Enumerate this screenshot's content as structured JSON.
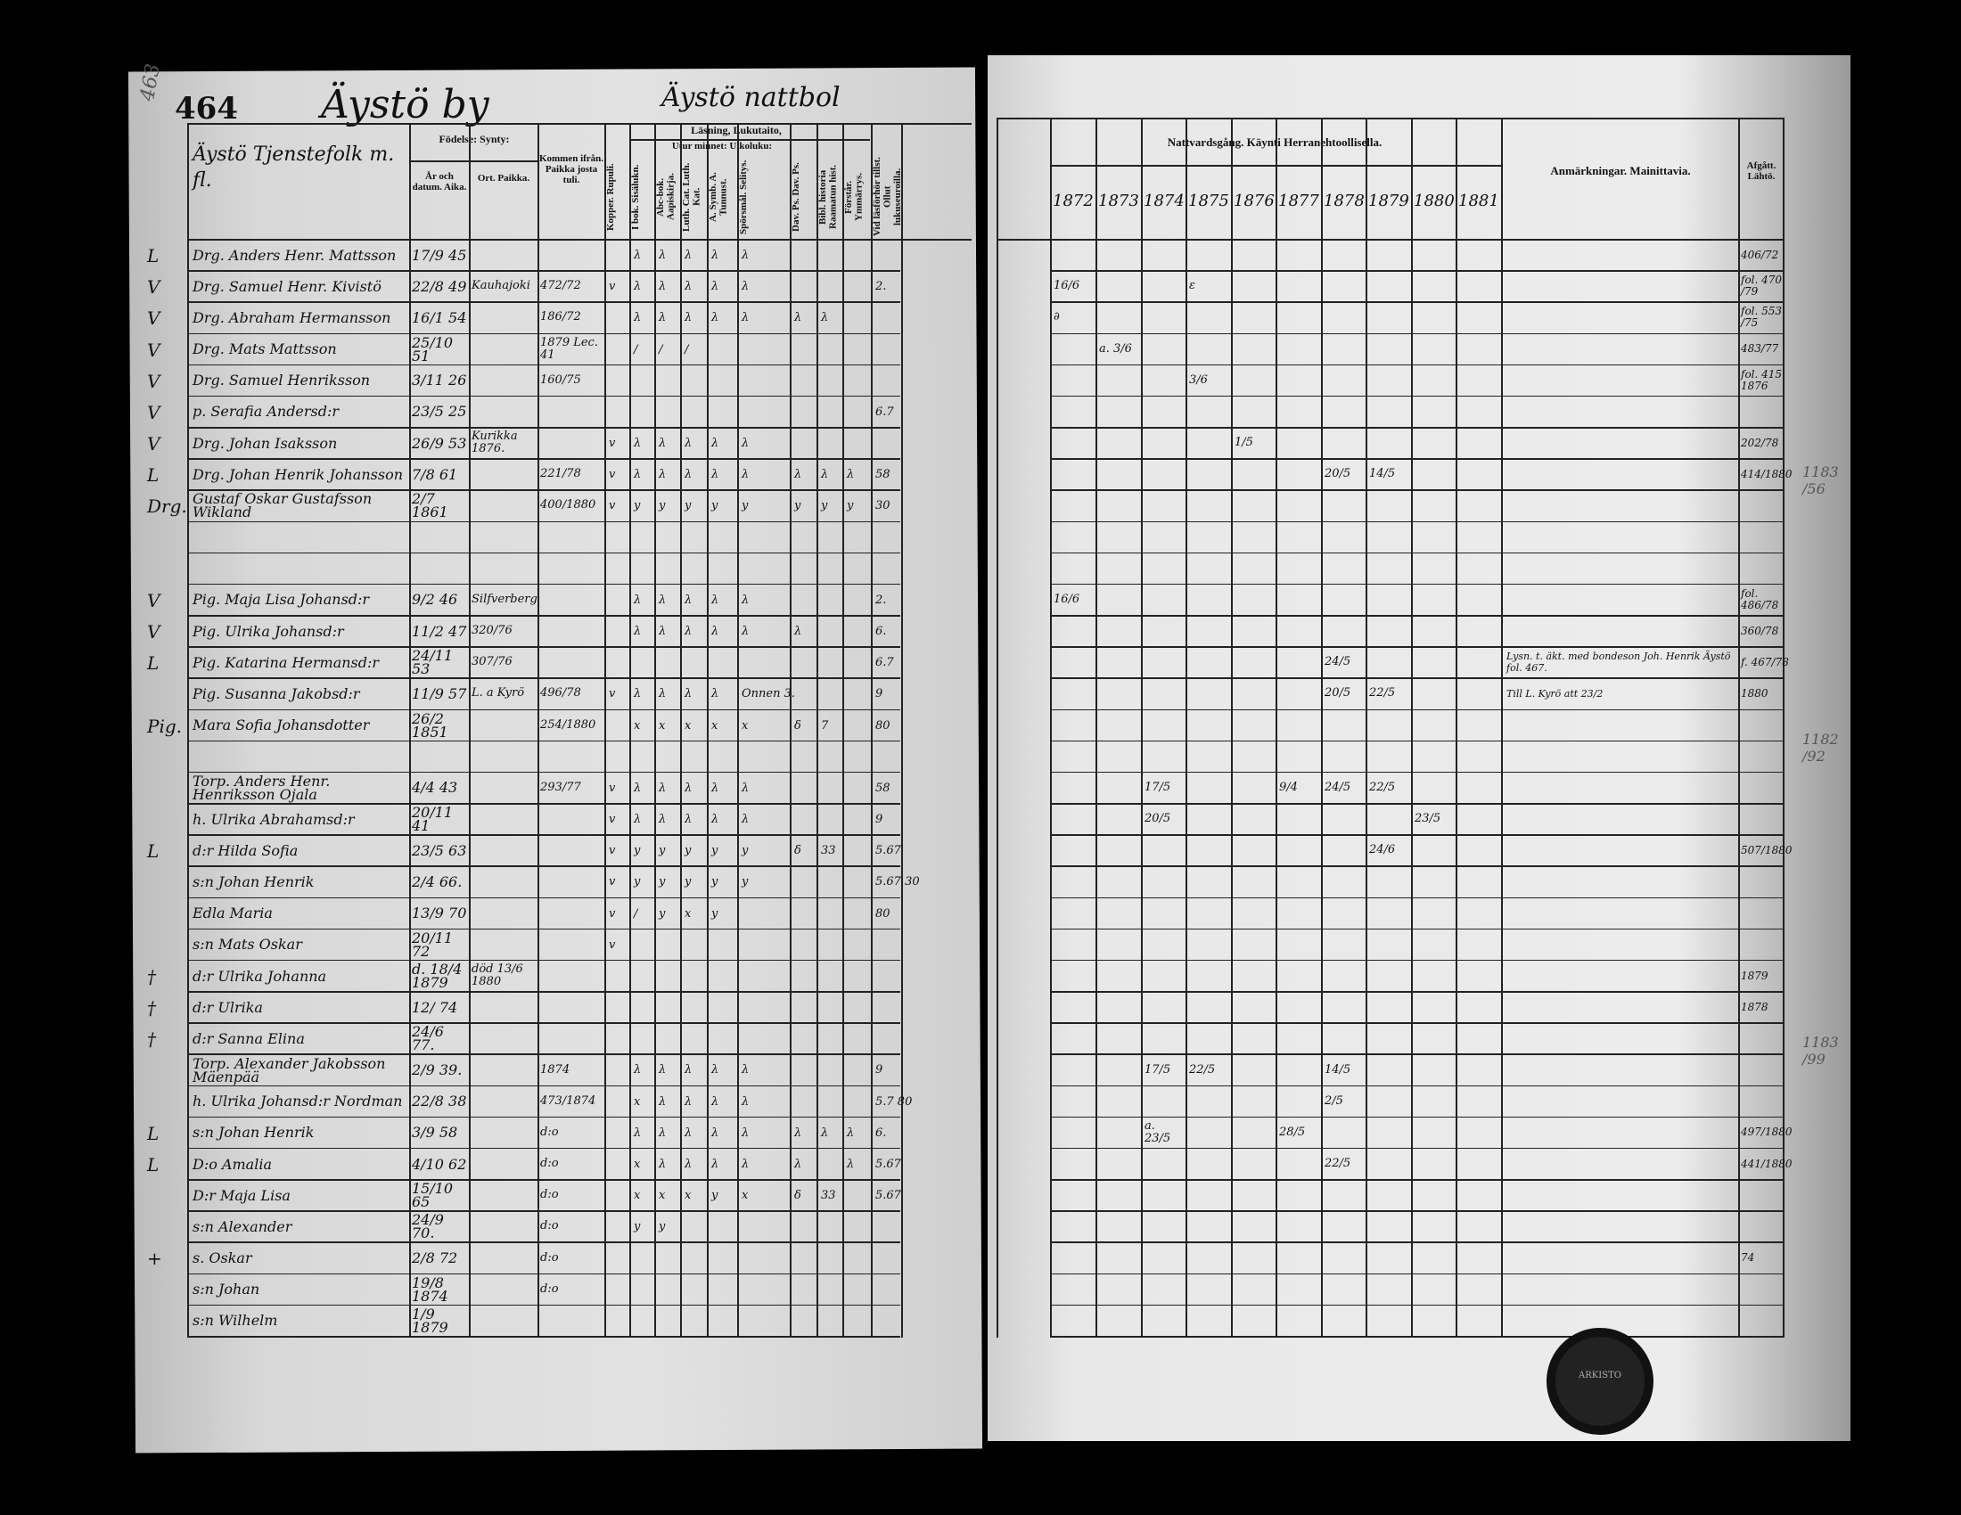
{
  "left_page": {
    "page_number": "464",
    "margin_number": "463",
    "village_title": "Äystö by",
    "group_title": "Äystö nattbol",
    "name_header": "Äystö Tjenstefolk m. fl.",
    "headers": {
      "birth_group": "Födelse: Synty:",
      "birth_date": "År och datum. Aika.",
      "birth_place": "Ort. Paikka.",
      "came_from": "Kommen ifrån. Paikka josta tuli.",
      "reading_group": "Läsning, Lukutaito,",
      "memory_group": "Utur minnet: Ulkoluku:",
      "narrow_columns": [
        "Kopper. Rupuli.",
        "I bok. Sisälukn.",
        "Abc-bok. Aapiskirja.",
        "Luth. Cat. Luth. Kat.",
        "A. Symb. A. Tunnust.",
        "Spörsmål. Selitys.",
        "Dav. Ps. Dav. Ps.",
        "Bibl. historia Raamatun hist.",
        "Förstår. Ymmärrys.",
        "Vid läsförhör tillst. Ollut lukuseuroilla."
      ]
    }
  },
  "right_page": {
    "communion_header": "Nattvardsgång. Käynti Herranehtoollisella.",
    "years": [
      "1872",
      "1873",
      "1874",
      "1875",
      "1876",
      "1877",
      "1878",
      "1879",
      "1880",
      "1881"
    ],
    "remarks_header": "Anmärkningar. Mainittavia.",
    "departed_header": "Afgått. Lähtö.",
    "margin_notes": [
      "1183 /56",
      "1182 /92",
      "1183 /99"
    ]
  },
  "stamp_text": "ARKISTO",
  "rows": [
    {
      "margin": "L",
      "name": "Drg. Anders Henr. Mattsson",
      "birth": "17/9 45",
      "place": "",
      "from": "",
      "marks": [
        "",
        "λ",
        "λ",
        "λ",
        "λ",
        "λ",
        "",
        "",
        "",
        ""
      ],
      "years": {},
      "note": "",
      "departed": "406/72"
    },
    {
      "margin": "V",
      "name": "Drg. Samuel Henr. Kivistö",
      "birth": "22/8 49",
      "place": "Kauhajoki",
      "from": "472/72",
      "marks": [
        "v",
        "λ",
        "λ",
        "λ",
        "λ",
        "λ",
        "",
        "",
        "",
        "2."
      ],
      "years": {
        "1872": "16/6",
        "1875": "ε"
      },
      "note": "",
      "departed": "fol. 470 /79"
    },
    {
      "margin": "V",
      "name": "Drg. Abraham Hermansson",
      "birth": "16/1 54",
      "place": "",
      "from": "186/72",
      "marks": [
        "",
        "λ",
        "λ",
        "λ",
        "λ",
        "λ",
        "λ",
        "λ",
        "",
        ""
      ],
      "years": {
        "1872": "∂"
      },
      "note": "",
      "departed": "fol. 553 /75"
    },
    {
      "margin": "V",
      "name": "Drg. Mats Mattsson",
      "birth": "25/10 51",
      "place": "",
      "from": "1879 Lec. 41",
      "marks": [
        "",
        "/",
        "/",
        "/",
        "",
        "",
        "",
        "",
        "",
        ""
      ],
      "years": {
        "1873": "a. 3/6"
      },
      "note": "",
      "departed": "483/77"
    },
    {
      "margin": "V",
      "name": "Drg. Samuel Henriksson",
      "birth": "3/11 26",
      "place": "",
      "from": "160/75",
      "marks": [
        "",
        "",
        "",
        "",
        "",
        "",
        "",
        "",
        "",
        ""
      ],
      "years": {
        "1875": "3/6"
      },
      "note": "",
      "departed": "fol. 415 1876"
    },
    {
      "margin": "V",
      "name": "p. Serafia Andersd:r",
      "birth": "23/5 25",
      "place": "",
      "from": "",
      "marks": [
        "",
        "",
        "",
        "",
        "",
        "",
        "",
        "",
        "",
        "6.7"
      ],
      "years": {},
      "note": "",
      "departed": ""
    },
    {
      "margin": "V",
      "name": "Drg. Johan Isaksson",
      "birth": "26/9 53",
      "place": "Kurikka 1876.",
      "from": "",
      "marks": [
        "v",
        "λ",
        "λ",
        "λ",
        "λ",
        "λ",
        "",
        "",
        "",
        ""
      ],
      "years": {
        "1876": "1/5"
      },
      "note": "",
      "departed": "202/78"
    },
    {
      "margin": "L",
      "name": "Drg. Johan Henrik Johansson",
      "birth": "7/8 61",
      "place": "",
      "from": "221/78",
      "marks": [
        "v",
        "λ",
        "λ",
        "λ",
        "λ",
        "λ",
        "λ",
        "λ",
        "λ",
        "58"
      ],
      "years": {
        "1878": "20/5",
        "1879": "14/5"
      },
      "note": "",
      "departed": "414/1880"
    },
    {
      "margin": "Drg.",
      "name": "Gustaf Oskar Gustafsson Wikland",
      "birth": "2/7 1861",
      "place": "",
      "from": "400/1880",
      "marks": [
        "v",
        "y",
        "y",
        "y",
        "y",
        "y",
        "y",
        "y",
        "y",
        "30"
      ],
      "years": {},
      "note": "",
      "departed": ""
    },
    {
      "margin": "",
      "name": "",
      "birth": "",
      "place": "",
      "from": "",
      "marks": [
        "",
        "",
        "",
        "",
        "",
        "",
        "",
        "",
        "",
        ""
      ],
      "years": {},
      "note": "",
      "departed": ""
    },
    {
      "margin": "",
      "name": "",
      "birth": "",
      "place": "",
      "from": "",
      "marks": [
        "",
        "",
        "",
        "",
        "",
        "",
        "",
        "",
        "",
        ""
      ],
      "years": {},
      "note": "",
      "departed": ""
    },
    {
      "margin": "V",
      "name": "Pig. Maja Lisa Johansd:r",
      "birth": "9/2 46",
      "place": "Silfverberg",
      "from": "",
      "marks": [
        "",
        "λ",
        "λ",
        "λ",
        "λ",
        "λ",
        "",
        "",
        "",
        "2."
      ],
      "years": {
        "1872": "16/6"
      },
      "note": "",
      "departed": "fol. 486/78"
    },
    {
      "margin": "V",
      "name": "Pig. Ulrika Johansd:r",
      "birth": "11/2 47",
      "place": "320/76",
      "from": "",
      "marks": [
        "",
        "λ",
        "λ",
        "λ",
        "λ",
        "λ",
        "λ",
        "",
        "",
        "6."
      ],
      "years": {},
      "note": "",
      "departed": "360/78"
    },
    {
      "margin": "L",
      "name": "Pig. Katarina Hermansd:r",
      "birth": "24/11 53",
      "place": "307/76",
      "from": "",
      "marks": [
        "",
        "",
        "",
        "",
        "",
        "",
        "",
        "",
        "",
        "6.7"
      ],
      "years": {
        "1878": "24/5"
      },
      "note": "Lysn. t. äkt. med bondeson Joh. Henrik Äystö fol. 467.",
      "departed": "f. 467/78"
    },
    {
      "margin": "",
      "name": "Pig. Susanna Jakobsd:r",
      "birth": "11/9 57",
      "place": "L. a Kyrö",
      "from": "496/78",
      "marks": [
        "v",
        "λ",
        "λ",
        "λ",
        "λ",
        "Onnen 3.",
        "",
        "",
        "",
        "9"
      ],
      "years": {
        "1878": "20/5",
        "1879": "22/5"
      },
      "note": "Till L. Kyrö att 23/2",
      "departed": "1880"
    },
    {
      "margin": "Pig.",
      "name": "Mara Sofia Johansdotter",
      "birth": "26/2 1851",
      "place": "",
      "from": "254/1880",
      "marks": [
        "",
        "x",
        "x",
        "x",
        "x",
        "x",
        "δ",
        "7",
        "",
        "80"
      ],
      "years": {},
      "note": "",
      "departed": ""
    },
    {
      "margin": "",
      "name": "",
      "birth": "",
      "place": "",
      "from": "",
      "marks": [
        "",
        "",
        "",
        "",
        "",
        "",
        "",
        "",
        "",
        ""
      ],
      "years": {},
      "note": "",
      "departed": ""
    },
    {
      "margin": "",
      "name": "Torp. Anders Henr. Henriksson Ojala",
      "birth": "4/4 43",
      "place": "",
      "from": "293/77",
      "marks": [
        "v",
        "λ",
        "λ",
        "λ",
        "λ",
        "λ",
        "",
        "",
        "",
        "58"
      ],
      "years": {
        "1874": "17/5",
        "1877": "9/4",
        "1878": "24/5",
        "1879": "22/5"
      },
      "note": "",
      "departed": ""
    },
    {
      "margin": "",
      "name": "h. Ulrika Abrahamsd:r",
      "birth": "20/11 41",
      "place": "",
      "from": "",
      "marks": [
        "v",
        "λ",
        "λ",
        "λ",
        "λ",
        "λ",
        "",
        "",
        "",
        "9"
      ],
      "years": {
        "1874": "20/5",
        "1880": "23/5"
      },
      "note": "",
      "departed": ""
    },
    {
      "margin": "L",
      "name": "d:r Hilda Sofia",
      "birth": "23/5 63",
      "place": "",
      "from": "",
      "marks": [
        "v",
        "y",
        "y",
        "y",
        "y",
        "y",
        "δ",
        "33",
        "",
        "5.67"
      ],
      "years": {
        "1879": "24/6"
      },
      "note": "",
      "departed": "507/1880"
    },
    {
      "margin": "",
      "name": "s:n Johan Henrik",
      "birth": "2/4 66.",
      "place": "",
      "from": "",
      "marks": [
        "v",
        "y",
        "y",
        "y",
        "y",
        "y",
        "",
        "",
        "",
        "5.67 30"
      ],
      "years": {},
      "note": "",
      "departed": ""
    },
    {
      "margin": "",
      "name": "Edla Maria",
      "birth": "13/9 70",
      "place": "",
      "from": "",
      "marks": [
        "v",
        "/",
        "y",
        "x",
        "y",
        "",
        "",
        "",
        "",
        "80"
      ],
      "years": {},
      "note": "",
      "departed": ""
    },
    {
      "margin": "",
      "name": "s:n Mats Oskar",
      "birth": "20/11 72",
      "place": "",
      "from": "",
      "marks": [
        "v",
        "",
        "",
        "",
        "",
        "",
        "",
        "",
        "",
        ""
      ],
      "years": {},
      "note": "",
      "departed": ""
    },
    {
      "margin": "†",
      "name": "d:r Ulrika Johanna",
      "birth": "d. 18/4 1879",
      "place": "död 13/6 1880",
      "from": "",
      "marks": [
        "",
        "",
        "",
        "",
        "",
        "",
        "",
        "",
        "",
        ""
      ],
      "years": {},
      "note": "",
      "departed": "1879"
    },
    {
      "margin": "†",
      "name": "d:r Ulrika",
      "birth": "12/ 74",
      "place": "",
      "from": "",
      "marks": [
        "",
        "",
        "",
        "",
        "",
        "",
        "",
        "",
        "",
        ""
      ],
      "years": {},
      "note": "",
      "departed": "1878"
    },
    {
      "margin": "†",
      "name": "d:r Sanna Elina",
      "birth": "24/6 77.",
      "place": "",
      "from": "",
      "marks": [
        "",
        "",
        "",
        "",
        "",
        "",
        "",
        "",
        "",
        ""
      ],
      "years": {},
      "note": "",
      "departed": ""
    },
    {
      "margin": "",
      "name": "Torp. Alexander Jakobsson Mäenpää",
      "birth": "2/9 39.",
      "place": "",
      "from": "1874",
      "marks": [
        "",
        "λ",
        "λ",
        "λ",
        "λ",
        "λ",
        "",
        "",
        "",
        "9"
      ],
      "years": {
        "1874": "17/5",
        "1875": "22/5",
        "1878": "14/5"
      },
      "note": "",
      "departed": ""
    },
    {
      "margin": "",
      "name": "h. Ulrika Johansd:r Nordman",
      "birth": "22/8 38",
      "place": "",
      "from": "473/1874",
      "marks": [
        "",
        "x",
        "λ",
        "λ",
        "λ",
        "λ",
        "",
        "",
        "",
        "5.7 80"
      ],
      "years": {
        "1878": "2/5"
      },
      "note": "",
      "departed": ""
    },
    {
      "margin": "L",
      "name": "s:n Johan Henrik",
      "birth": "3/9 58",
      "place": "",
      "from": "d:o",
      "marks": [
        "",
        "λ",
        "λ",
        "λ",
        "λ",
        "λ",
        "λ",
        "λ",
        "λ",
        "6."
      ],
      "years": {
        "1874": "a. 23/5",
        "1877": "28/5"
      },
      "note": "",
      "departed": "497/1880"
    },
    {
      "margin": "L",
      "name": "D:o Amalia",
      "birth": "4/10 62",
      "place": "",
      "from": "d:o",
      "marks": [
        "",
        "x",
        "λ",
        "λ",
        "λ",
        "λ",
        "λ",
        "",
        "λ",
        "5.67"
      ],
      "years": {
        "1878": "22/5"
      },
      "note": "",
      "departed": "441/1880"
    },
    {
      "margin": "",
      "name": "D:r Maja Lisa",
      "birth": "15/10 65",
      "place": "",
      "from": "d:o",
      "marks": [
        "",
        "x",
        "x",
        "x",
        "y",
        "x",
        "δ",
        "33",
        "",
        "5.67"
      ],
      "years": {},
      "note": "",
      "departed": ""
    },
    {
      "margin": "",
      "name": "s:n Alexander",
      "birth": "24/9 70.",
      "place": "",
      "from": "d:o",
      "marks": [
        "",
        "y",
        "y",
        "",
        "",
        "",
        "",
        "",
        "",
        ""
      ],
      "years": {},
      "note": "",
      "departed": ""
    },
    {
      "margin": "+",
      "name": "s. Oskar",
      "birth": "2/8 72",
      "place": "",
      "from": "d:o",
      "marks": [
        "",
        "",
        "",
        "",
        "",
        "",
        "",
        "",
        "",
        ""
      ],
      "years": {},
      "note": "",
      "departed": "74"
    },
    {
      "margin": "",
      "name": "s:n Johan",
      "birth": "19/8 1874",
      "place": "",
      "from": "d:o",
      "marks": [
        "",
        "",
        "",
        "",
        "",
        "",
        "",
        "",
        "",
        ""
      ],
      "years": {},
      "note": "",
      "departed": ""
    },
    {
      "margin": "",
      "name": "s:n Wilhelm",
      "birth": "1/9 1879",
      "place": "",
      "from": "",
      "marks": [
        "",
        "",
        "",
        "",
        "",
        "",
        "",
        "",
        "",
        ""
      ],
      "years": {},
      "note": "",
      "departed": ""
    }
  ]
}
